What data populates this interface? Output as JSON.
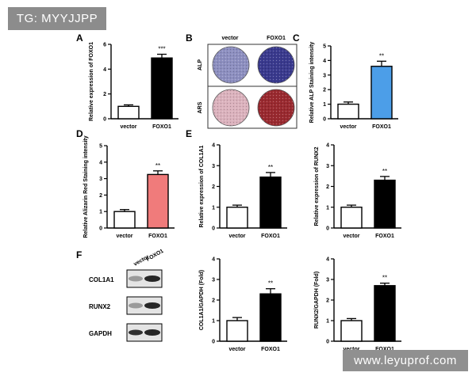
{
  "panel_letters": [
    "A",
    "B",
    "C",
    "D",
    "E",
    "F"
  ],
  "watermarks": {
    "top_left": "TG: MYYJJPP",
    "bottom_right": "www.leyuprof.com"
  },
  "staining": {
    "columns": [
      "vector",
      "FOXO1"
    ],
    "rows": [
      "ALP",
      "ARS"
    ],
    "colors": {
      "alp_vector": "#8d8fc0",
      "alp_foxo1": "#3a3a8e",
      "ars_vector": "#dbb2bd",
      "ars_foxo1": "#9a2a30"
    }
  },
  "western_blot": {
    "lanes": [
      "vector",
      "FOXO1"
    ],
    "proteins": [
      "COL1A1",
      "RUNX2",
      "GAPDH"
    ]
  },
  "chart_data": [
    {
      "id": "A",
      "type": "bar",
      "categories": [
        "vector",
        "FOXO1"
      ],
      "values": [
        1.0,
        4.9
      ],
      "errors": [
        0.12,
        0.3
      ],
      "colors": [
        "#ffffff",
        "#000000"
      ],
      "ylabel": "Relative expression of FOXO1",
      "ylim": [
        0,
        6
      ],
      "yticks": [
        "0",
        "2",
        "4",
        "6"
      ],
      "significance": "***"
    },
    {
      "id": "C",
      "type": "bar",
      "categories": [
        "vector",
        "FOXO1"
      ],
      "values": [
        1.0,
        3.6
      ],
      "errors": [
        0.15,
        0.35
      ],
      "colors": [
        "#ffffff",
        "#4c9ee8"
      ],
      "ylabel": "Relative ALP Staining intensity",
      "ylim": [
        0,
        5
      ],
      "yticks": [
        "0",
        "1",
        "2",
        "3",
        "4",
        "5"
      ],
      "significance": "**"
    },
    {
      "id": "D",
      "type": "bar",
      "categories": [
        "vector",
        "FOXO1"
      ],
      "values": [
        1.0,
        3.25
      ],
      "errors": [
        0.12,
        0.22
      ],
      "colors": [
        "#ffffff",
        "#f07b7b"
      ],
      "ylabel": "Relative Alizarin Red Staining intensity",
      "ylim": [
        0,
        5
      ],
      "yticks": [
        "0",
        "1",
        "2",
        "3",
        "4",
        "5"
      ],
      "significance": "**"
    },
    {
      "id": "E1",
      "type": "bar",
      "categories": [
        "vector",
        "FOXO1"
      ],
      "values": [
        1.0,
        2.45
      ],
      "errors": [
        0.1,
        0.22
      ],
      "colors": [
        "#ffffff",
        "#000000"
      ],
      "ylabel": "Relative expression of COL1A1",
      "ylim": [
        0,
        4
      ],
      "yticks": [
        "0",
        "1",
        "2",
        "3",
        "4"
      ],
      "significance": "**"
    },
    {
      "id": "E2",
      "type": "bar",
      "categories": [
        "vector",
        "FOXO1"
      ],
      "values": [
        1.0,
        2.3
      ],
      "errors": [
        0.1,
        0.18
      ],
      "colors": [
        "#ffffff",
        "#000000"
      ],
      "ylabel": "Relative expression of RUNX2",
      "ylim": [
        0,
        4
      ],
      "yticks": [
        "0",
        "1",
        "2",
        "3",
        "4"
      ],
      "significance": "**"
    },
    {
      "id": "F1",
      "type": "bar",
      "categories": [
        "vector",
        "FOXO1"
      ],
      "values": [
        1.0,
        2.3
      ],
      "errors": [
        0.15,
        0.25
      ],
      "colors": [
        "#ffffff",
        "#000000"
      ],
      "ylabel": "COL1A1/GAPDH (Fold)",
      "ylim": [
        0,
        4
      ],
      "yticks": [
        "0",
        "1",
        "2",
        "3",
        "4"
      ],
      "significance": "**"
    },
    {
      "id": "F2",
      "type": "bar",
      "categories": [
        "vector",
        "FOXO1"
      ],
      "values": [
        1.0,
        2.7
      ],
      "errors": [
        0.1,
        0.12
      ],
      "colors": [
        "#ffffff",
        "#000000"
      ],
      "ylabel": "RUNX2/GAPDH (Fold)",
      "ylim": [
        0,
        4
      ],
      "yticks": [
        "0",
        "1",
        "2",
        "3",
        "4"
      ],
      "significance": "**"
    }
  ]
}
